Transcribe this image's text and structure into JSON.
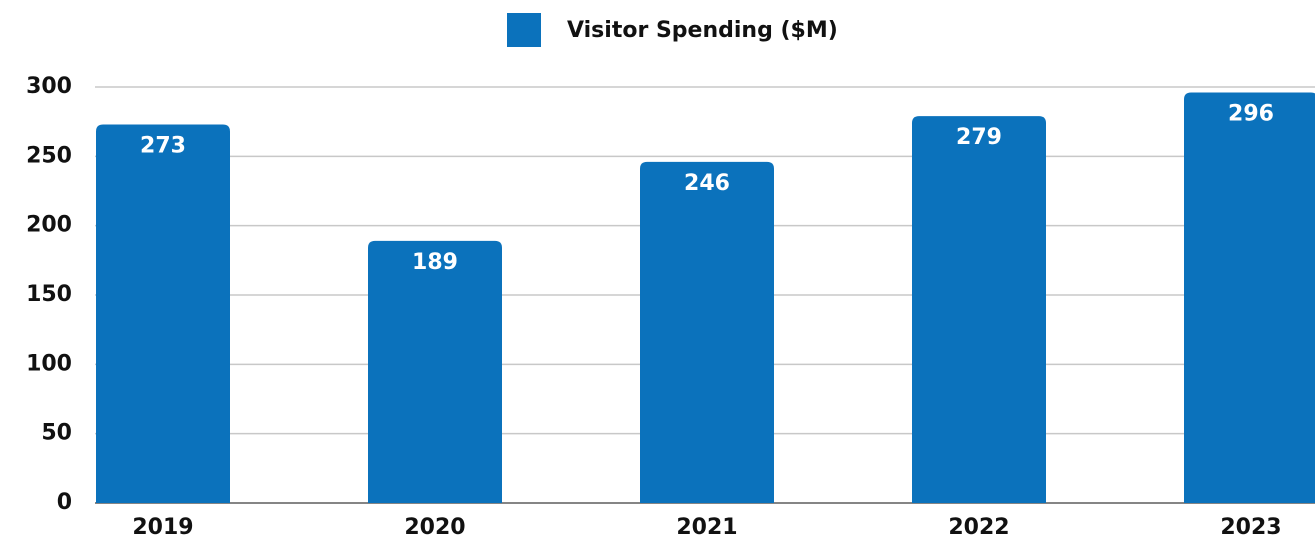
{
  "chart_data": {
    "type": "bar",
    "categories": [
      "2019",
      "2020",
      "2021",
      "2022",
      "2023"
    ],
    "series": [
      {
        "name": "Visitor Spending ($M)",
        "color": "#0b72bc",
        "values": [
          273,
          189,
          246,
          279,
          296
        ]
      }
    ],
    "ylim": [
      0,
      300
    ],
    "yticks": [
      0,
      50,
      100,
      150,
      200,
      250,
      300
    ],
    "grid": true,
    "legend": "top"
  }
}
